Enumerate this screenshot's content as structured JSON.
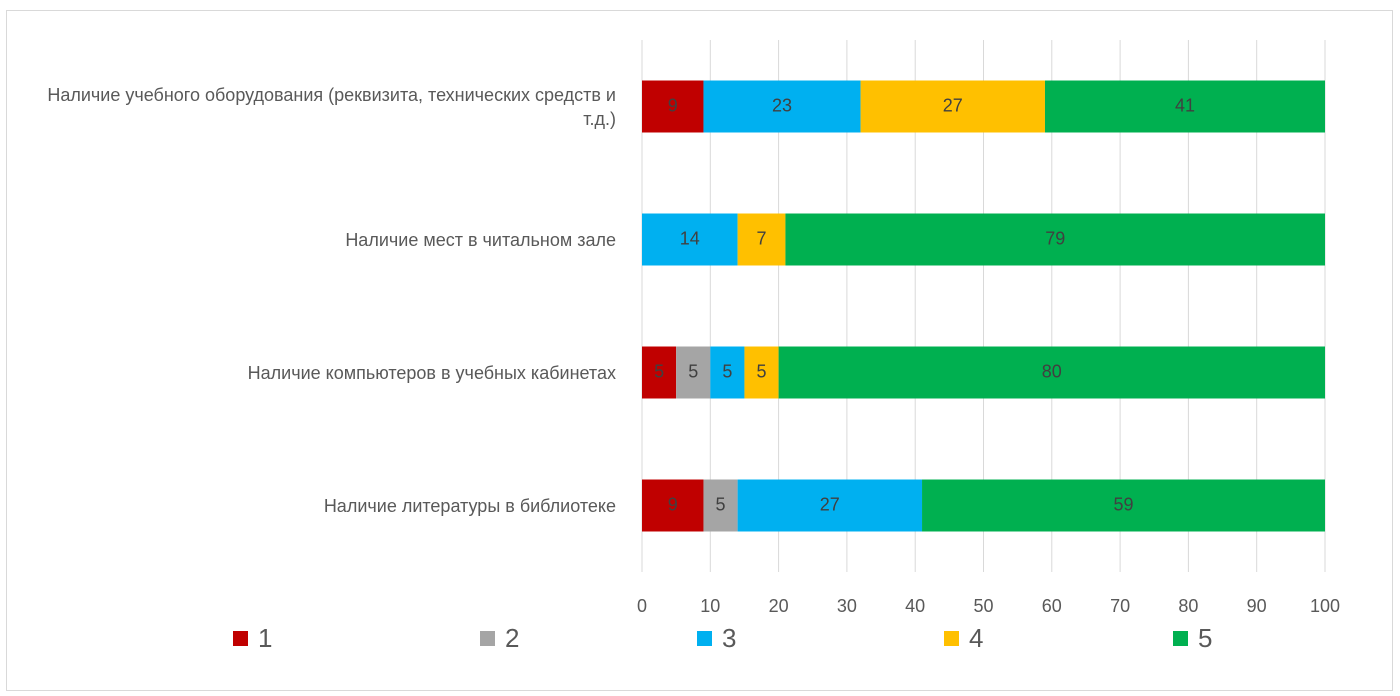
{
  "chart_data": {
    "type": "stacked_barh",
    "categories": [
      "Наличие учебного оборудования (реквизита, технических средств и т.д.)",
      "Наличие мест в читальном зале",
      "Наличие компьютеров в учебных кабинетах",
      "Наличие литературы в библиотеке"
    ],
    "series": [
      {
        "name": "1",
        "color": "#c00000",
        "values": [
          9,
          null,
          5,
          9
        ]
      },
      {
        "name": "2",
        "color": "#a5a5a5",
        "values": [
          null,
          null,
          5,
          5
        ]
      },
      {
        "name": "3",
        "color": "#00b0f0",
        "values": [
          23,
          14,
          5,
          27
        ]
      },
      {
        "name": "4",
        "color": "#ffc000",
        "values": [
          27,
          7,
          5,
          null
        ]
      },
      {
        "name": "5",
        "color": "#00b050",
        "values": [
          41,
          79,
          80,
          59
        ]
      }
    ],
    "xlim": [
      0,
      100
    ],
    "xticks": [
      0,
      10,
      20,
      30,
      40,
      50,
      60,
      70,
      80,
      90,
      100
    ],
    "grid": true,
    "legend": "bottom"
  }
}
